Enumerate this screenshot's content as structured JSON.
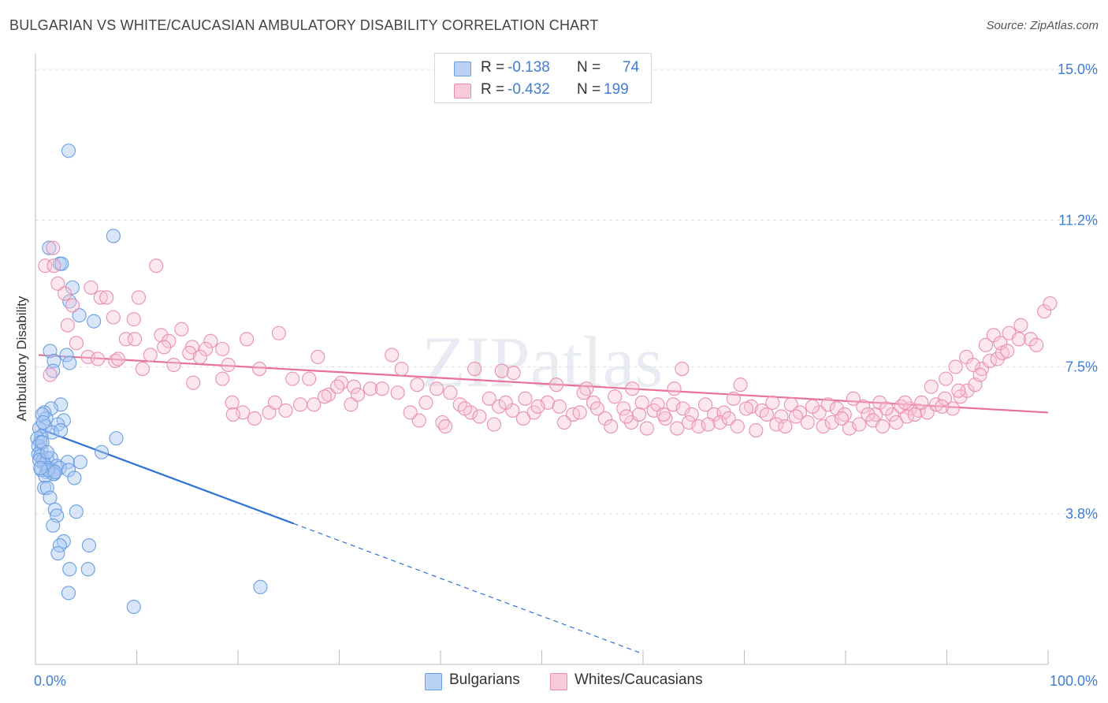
{
  "title": "BULGARIAN VS WHITE/CAUCASIAN AMBULATORY DISABILITY CORRELATION CHART",
  "source": "Source: ZipAtlas.com",
  "watermark": "ZIPatlas",
  "legend_top": [
    {
      "r_label": "R =",
      "r_value": "-0.138",
      "n_label": "N =",
      "n_value": "74",
      "color": "#a9c6f2",
      "border": "#6a9ee0"
    },
    {
      "r_label": "R =",
      "r_value": "-0.432",
      "n_label": "N =",
      "n_value": "199",
      "color": "#f6bfd0",
      "border": "#e98fae"
    }
  ],
  "legend_bottom": [
    {
      "label": "Bulgarians",
      "color": "#b9d1f5",
      "border": "#6a9ee0"
    },
    {
      "label": "Whites/Caucasians",
      "color": "#f9cad8",
      "border": "#e98fae"
    }
  ],
  "chart_data": {
    "type": "scatter",
    "title": "BULGARIAN VS WHITE/CAUCASIAN AMBULATORY DISABILITY CORRELATION CHART",
    "xlabel": "",
    "ylabel": "Ambulatory Disability",
    "xlim": [
      0,
      100
    ],
    "ylim": [
      0,
      15.2
    ],
    "x_tick_labels": [
      "0.0%",
      "100.0%"
    ],
    "y_ticks": [
      3.8,
      7.5,
      11.2,
      15.0
    ],
    "y_tick_labels": [
      "3.8%",
      "7.5%",
      "11.2%",
      "15.0%"
    ],
    "series": [
      {
        "name": "Bulgarians",
        "color": "#6a9ee0",
        "fill": "rgba(170,199,243,0.45)",
        "trend": {
          "x0": 0.3,
          "y0": 5.95,
          "x1": 25.5,
          "y1": 3.55,
          "dash_to_x": 60.0
        },
        "trend_color": "#2f72d6",
        "points": [
          [
            3.4,
            12.95
          ],
          [
            8.0,
            10.8
          ],
          [
            1.4,
            10.5
          ],
          [
            2.5,
            10.1
          ],
          [
            2.7,
            10.1
          ],
          [
            3.8,
            9.5
          ],
          [
            3.5,
            9.15
          ],
          [
            4.5,
            8.8
          ],
          [
            6.0,
            8.65
          ],
          [
            1.5,
            7.9
          ],
          [
            3.2,
            7.8
          ],
          [
            1.9,
            7.65
          ],
          [
            3.5,
            7.6
          ],
          [
            1.8,
            7.4
          ],
          [
            2.6,
            6.55
          ],
          [
            1.6,
            6.45
          ],
          [
            0.9,
            6.35
          ],
          [
            1.1,
            6.2
          ],
          [
            0.7,
            6.3
          ],
          [
            2.9,
            6.15
          ],
          [
            1.0,
            6.0
          ],
          [
            2.3,
            6.05
          ],
          [
            1.7,
            5.85
          ],
          [
            2.6,
            5.9
          ],
          [
            0.4,
            5.95
          ],
          [
            0.6,
            5.75
          ],
          [
            0.2,
            5.7
          ],
          [
            0.5,
            5.6
          ],
          [
            0.3,
            5.5
          ],
          [
            8.3,
            5.7
          ],
          [
            0.6,
            5.4
          ],
          [
            0.3,
            5.3
          ],
          [
            0.5,
            5.25
          ],
          [
            6.8,
            5.35
          ],
          [
            0.8,
            5.15
          ],
          [
            1.2,
            5.2
          ],
          [
            1.6,
            5.2
          ],
          [
            0.9,
            5.05
          ],
          [
            1.3,
            4.95
          ],
          [
            1.8,
            4.9
          ],
          [
            2.2,
            5.0
          ],
          [
            3.3,
            5.1
          ],
          [
            4.6,
            5.1
          ],
          [
            1.1,
            4.85
          ],
          [
            0.6,
            4.9
          ],
          [
            2.5,
            4.95
          ],
          [
            3.4,
            4.9
          ],
          [
            1.8,
            4.8
          ],
          [
            1.9,
            4.8
          ],
          [
            1.0,
            4.75
          ],
          [
            4.0,
            4.7
          ],
          [
            0.9,
            4.45
          ],
          [
            1.2,
            4.45
          ],
          [
            1.5,
            4.2
          ],
          [
            2.0,
            3.9
          ],
          [
            4.2,
            3.85
          ],
          [
            2.2,
            3.75
          ],
          [
            1.8,
            3.5
          ],
          [
            2.9,
            3.1
          ],
          [
            2.5,
            3.0
          ],
          [
            5.5,
            3.0
          ],
          [
            2.3,
            2.8
          ],
          [
            3.5,
            2.4
          ],
          [
            5.4,
            2.4
          ],
          [
            3.4,
            1.8
          ],
          [
            10.1,
            1.45
          ],
          [
            23.1,
            1.95
          ],
          [
            0.4,
            5.15
          ],
          [
            0.7,
            5.6
          ],
          [
            1.3,
            4.9
          ],
          [
            2.0,
            4.85
          ],
          [
            0.8,
            6.1
          ],
          [
            1.2,
            5.35
          ],
          [
            0.5,
            4.95
          ]
        ]
      },
      {
        "name": "Whites/Caucasians",
        "color": "#e98fae",
        "fill": "rgba(248,196,213,0.4)",
        "trend": {
          "x0": 0.3,
          "y0": 7.8,
          "x1": 100,
          "y1": 6.35
        },
        "trend_color": "#e8719a",
        "points": [
          [
            1.0,
            10.05
          ],
          [
            1.9,
            10.05
          ],
          [
            1.8,
            10.5
          ],
          [
            12.4,
            10.05
          ],
          [
            2.3,
            9.6
          ],
          [
            5.7,
            9.5
          ],
          [
            3.0,
            9.35
          ],
          [
            6.7,
            9.25
          ],
          [
            7.3,
            9.25
          ],
          [
            10.6,
            9.25
          ],
          [
            3.8,
            9.05
          ],
          [
            8.0,
            8.75
          ],
          [
            10.1,
            8.7
          ],
          [
            3.3,
            8.55
          ],
          [
            15.0,
            8.45
          ],
          [
            12.9,
            8.3
          ],
          [
            13.7,
            8.15
          ],
          [
            9.3,
            8.2
          ],
          [
            10.2,
            8.2
          ],
          [
            18.0,
            8.15
          ],
          [
            21.7,
            8.2
          ],
          [
            25.0,
            8.35
          ],
          [
            4.2,
            8.1
          ],
          [
            13.2,
            8.0
          ],
          [
            16.1,
            8.0
          ],
          [
            17.5,
            7.95
          ],
          [
            19.2,
            7.95
          ],
          [
            11.8,
            7.8
          ],
          [
            15.8,
            7.85
          ],
          [
            5.4,
            7.75
          ],
          [
            6.4,
            7.7
          ],
          [
            8.2,
            7.65
          ],
          [
            16.9,
            7.75
          ],
          [
            29.0,
            7.75
          ],
          [
            36.6,
            7.8
          ],
          [
            1.5,
            7.3
          ],
          [
            8.5,
            7.7
          ],
          [
            11.0,
            7.45
          ],
          [
            14.2,
            7.55
          ],
          [
            19.8,
            7.55
          ],
          [
            16.2,
            7.1
          ],
          [
            19.2,
            7.2
          ],
          [
            23.0,
            7.45
          ],
          [
            26.4,
            7.2
          ],
          [
            28.1,
            7.2
          ],
          [
            31.4,
            7.1
          ],
          [
            32.7,
            7.0
          ],
          [
            34.4,
            6.95
          ],
          [
            37.6,
            7.45
          ],
          [
            39.2,
            7.05
          ],
          [
            41.2,
            6.95
          ],
          [
            45.1,
            7.45
          ],
          [
            47.9,
            7.4
          ],
          [
            49.1,
            7.35
          ],
          [
            53.5,
            7.05
          ],
          [
            56.6,
            6.95
          ],
          [
            61.3,
            6.95
          ],
          [
            66.4,
            7.45
          ],
          [
            65.6,
            6.95
          ],
          [
            72.4,
            7.05
          ],
          [
            20.2,
            6.6
          ],
          [
            21.3,
            6.35
          ],
          [
            24.0,
            6.35
          ],
          [
            24.6,
            6.6
          ],
          [
            25.7,
            6.4
          ],
          [
            28.6,
            6.55
          ],
          [
            30.1,
            6.8
          ],
          [
            31.0,
            7.0
          ],
          [
            33.1,
            6.8
          ],
          [
            35.6,
            6.95
          ],
          [
            37.2,
            6.85
          ],
          [
            39.4,
            6.15
          ],
          [
            41.8,
            6.1
          ],
          [
            42.6,
            6.85
          ],
          [
            43.6,
            6.55
          ],
          [
            44.7,
            6.35
          ],
          [
            46.6,
            6.7
          ],
          [
            47.6,
            6.5
          ],
          [
            49.0,
            6.4
          ],
          [
            50.3,
            6.7
          ],
          [
            51.2,
            6.35
          ],
          [
            52.6,
            6.6
          ],
          [
            53.8,
            6.5
          ],
          [
            55.2,
            6.3
          ],
          [
            56.3,
            6.85
          ],
          [
            57.3,
            6.6
          ],
          [
            58.5,
            6.2
          ],
          [
            59.5,
            6.75
          ],
          [
            60.4,
            6.45
          ],
          [
            61.2,
            6.1
          ],
          [
            62.3,
            6.6
          ],
          [
            63.5,
            6.4
          ],
          [
            64.7,
            6.2
          ],
          [
            65.5,
            6.55
          ],
          [
            66.5,
            6.45
          ],
          [
            67.4,
            6.3
          ],
          [
            68.8,
            6.55
          ],
          [
            69.7,
            6.3
          ],
          [
            70.7,
            6.35
          ],
          [
            71.7,
            6.7
          ],
          [
            73.5,
            6.5
          ],
          [
            74.6,
            6.4
          ],
          [
            75.7,
            6.6
          ],
          [
            76.6,
            6.25
          ],
          [
            77.6,
            6.55
          ],
          [
            78.5,
            6.35
          ],
          [
            79.3,
            6.1
          ],
          [
            80.5,
            6.35
          ],
          [
            81.4,
            6.55
          ],
          [
            82.3,
            6.45
          ],
          [
            83.1,
            6.3
          ],
          [
            84.0,
            6.7
          ],
          [
            85.0,
            6.5
          ],
          [
            86.3,
            6.3
          ],
          [
            86.7,
            6.6
          ],
          [
            88.0,
            6.3
          ],
          [
            88.9,
            6.5
          ],
          [
            89.8,
            6.45
          ],
          [
            90.7,
            6.4
          ],
          [
            91.6,
            6.35
          ],
          [
            92.5,
            6.55
          ],
          [
            93.4,
            6.7
          ],
          [
            94.2,
            6.45
          ],
          [
            95.0,
            6.75
          ],
          [
            95.7,
            6.9
          ],
          [
            96.5,
            7.05
          ],
          [
            97.2,
            7.45
          ],
          [
            98.0,
            7.65
          ],
          [
            98.8,
            7.7
          ],
          [
            99.3,
            7.85
          ],
          [
            94.8,
            6.9
          ],
          [
            93.1,
            6.5
          ],
          [
            89.3,
            6.6
          ],
          [
            87.4,
            6.45
          ],
          [
            91.0,
            6.6
          ],
          [
            92.0,
            7.0
          ],
          [
            93.5,
            7.2
          ],
          [
            94.5,
            7.5
          ],
          [
            95.6,
            7.75
          ],
          [
            96.3,
            7.55
          ],
          [
            97.6,
            8.05
          ],
          [
            98.4,
            8.3
          ],
          [
            99.1,
            8.1
          ],
          [
            100.0,
            8.35
          ],
          [
            101.2,
            8.55
          ],
          [
            102.2,
            8.2
          ],
          [
            102.8,
            8.05
          ],
          [
            103.6,
            8.9
          ],
          [
            104.2,
            9.1
          ],
          [
            101.0,
            8.2
          ],
          [
            99.8,
            7.9
          ],
          [
            97.0,
            7.3
          ],
          [
            20.3,
            6.3
          ],
          [
            22.5,
            6.2
          ],
          [
            27.2,
            6.55
          ],
          [
            29.7,
            6.75
          ],
          [
            32.4,
            6.55
          ],
          [
            38.5,
            6.35
          ],
          [
            40.1,
            6.6
          ],
          [
            42.1,
            6.0
          ],
          [
            44.1,
            6.45
          ],
          [
            45.6,
            6.25
          ],
          [
            47.1,
            6.05
          ],
          [
            48.3,
            6.6
          ],
          [
            50.1,
            6.2
          ],
          [
            51.6,
            6.5
          ],
          [
            54.3,
            6.1
          ],
          [
            55.9,
            6.35
          ],
          [
            57.7,
            6.45
          ],
          [
            59.1,
            6.0
          ],
          [
            60.7,
            6.25
          ],
          [
            62.0,
            6.3
          ],
          [
            62.8,
            5.95
          ],
          [
            63.9,
            6.55
          ],
          [
            64.5,
            6.3
          ],
          [
            65.9,
            5.95
          ],
          [
            67.1,
            6.1
          ],
          [
            68.1,
            6.0
          ],
          [
            69.1,
            6.05
          ],
          [
            70.3,
            6.1
          ],
          [
            71.2,
            6.2
          ],
          [
            72.1,
            6.0
          ],
          [
            73.0,
            6.45
          ],
          [
            74.0,
            5.9
          ],
          [
            75.1,
            6.3
          ],
          [
            76.1,
            6.05
          ],
          [
            77.0,
            6.0
          ],
          [
            78.1,
            6.25
          ],
          [
            79.8,
            6.5
          ],
          [
            80.9,
            6.0
          ],
          [
            81.8,
            6.1
          ],
          [
            82.8,
            6.2
          ],
          [
            83.6,
            5.95
          ],
          [
            84.6,
            6.05
          ],
          [
            85.5,
            6.3
          ],
          [
            86.0,
            6.15
          ],
          [
            87.0,
            6.0
          ],
          [
            88.4,
            6.1
          ],
          [
            89.5,
            6.25
          ],
          [
            90.3,
            6.3
          ]
        ]
      }
    ]
  }
}
